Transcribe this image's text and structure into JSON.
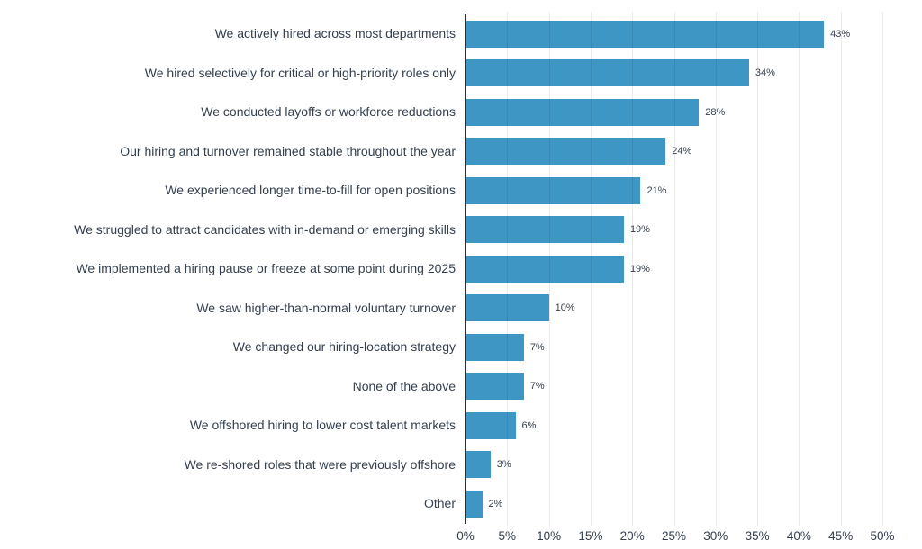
{
  "chart_data": {
    "type": "bar",
    "orientation": "horizontal",
    "title": "",
    "xlabel": "",
    "ylabel": "",
    "legend": "none",
    "grid": "vertical",
    "xlim": [
      0,
      50
    ],
    "categories": [
      "We actively hired across most departments",
      "We hired selectively for critical or high-priority roles only",
      "We conducted layoffs or workforce reductions",
      "Our hiring and turnover remained stable throughout the year",
      "We experienced longer time-to-fill for open positions",
      "We struggled to attract candidates with in-demand or emerging skills",
      "We implemented a hiring pause or freeze at some point during 2025",
      "We saw higher-than-normal voluntary turnover",
      "We changed our hiring-location strategy",
      "None of the above",
      "We offshored hiring to lower cost talent markets",
      "We re-shored roles that were previously offshore",
      "Other"
    ],
    "values": [
      43,
      34,
      28,
      24,
      21,
      19,
      19,
      10,
      7,
      7,
      6,
      3,
      2
    ],
    "value_labels": [
      "43%",
      "34%",
      "28%",
      "24%",
      "21%",
      "19%",
      "19%",
      "10%",
      "7%",
      "7%",
      "6%",
      "3%",
      "2%"
    ],
    "x_ticks": [
      "0%",
      "5%",
      "10%",
      "15%",
      "20%",
      "25%",
      "30%",
      "35%",
      "40%",
      "45%",
      "50%"
    ],
    "colors": {
      "bar": "#3e96c5",
      "label_text": "#333f4d",
      "tick_text": "#333f4d",
      "gridline": "#e8e8e8",
      "axis_spine": "#2b2f33",
      "background": "#ffffff"
    }
  }
}
